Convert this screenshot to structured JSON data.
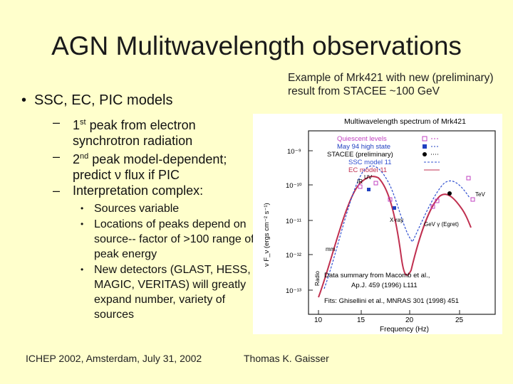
{
  "slide": {
    "title": "AGN Mulitwavelength observations",
    "caption_line1": "Example of Mrk421 with new (preliminary)",
    "caption_line2": "result from STACEE ~100 GeV",
    "bullet1": "SSC, EC, PIC models",
    "sub1_pre": "1",
    "sub1_sup": "st",
    "sub1_post": " peak from electron synchrotron radiation",
    "sub2_pre": "2",
    "sub2_sup": "nd",
    "sub2_post": " peak model-dependent; predict ν flux if PIC",
    "sub3": "Interpretation complex:",
    "subsub": [
      "Sources variable",
      "Locations of peaks depend on source-- factor of >100 range of peak energy",
      "New detectors (GLAST, HESS, MAGIC, VERITAS) will greatly expand number, variety of sources"
    ],
    "footer_left": "ICHEP 2002, Amsterdam, July 31, 2002",
    "footer_right": "Thomas K. Gaisser"
  },
  "figure": {
    "title": "Multiwavelength spectrum of Mrk421",
    "xlabel": "Frequency (Hz)",
    "ylabel": "ν F_ν (ergs cm⁻² s⁻¹)",
    "y_tick_labels": [
      "10⁻⁹",
      "10⁻¹⁰",
      "10⁻¹¹",
      "10⁻¹²",
      "10⁻¹³"
    ],
    "x_tick_labels": [
      "10",
      "15",
      "20",
      "25"
    ],
    "legend": [
      "Quiescent levels",
      "May 94 high state",
      "STACEE (preliminary)",
      "SSC model 11",
      "EC model 11"
    ],
    "band_labels": [
      "IR",
      "UV",
      "TeV",
      "X-ray",
      "GeV γ (Egret)",
      "mm",
      "Radio"
    ],
    "notes": [
      "Data summary from Macomb et al.,",
      "Ap.J. 459 (1996) L111",
      "Fits: Ghisellini et al., MNRAS 301 (1998) 451"
    ],
    "colors": {
      "quiescent": "#c040c0",
      "high_state": "#2040c0",
      "stacee": "#000000",
      "ssc": "#3050d0",
      "ec": "#c03050"
    }
  }
}
